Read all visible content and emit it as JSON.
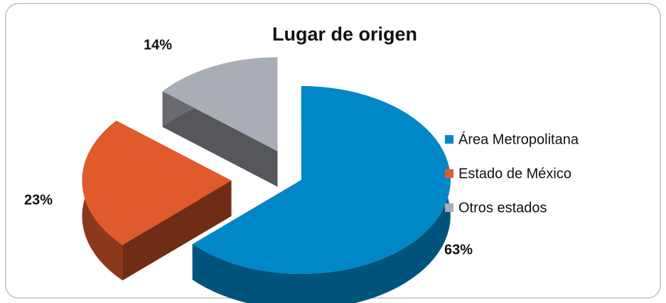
{
  "chart_data": {
    "type": "pie",
    "title": "Lugar de origen",
    "categories": [
      "Área Metropolitana",
      "Estado de México",
      "Otros estados"
    ],
    "values": [
      63,
      23,
      14
    ],
    "value_labels": [
      "63%",
      "23%",
      "14%"
    ],
    "colors": [
      "#0087c8",
      "#e05a2b",
      "#a9adb5"
    ]
  }
}
